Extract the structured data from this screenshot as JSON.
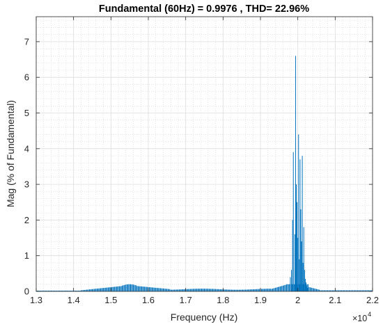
{
  "chart_data": {
    "type": "bar",
    "title": "Fundamental (60Hz) = 0.9976 , THD= 22.96%",
    "xlabel": "Frequency (Hz)",
    "ylabel": "Mag (% of Fundamental)",
    "x_exponent_label": "×10",
    "x_exponent_power": "4",
    "xlim": [
      13000,
      22000
    ],
    "ylim": [
      0,
      7.7
    ],
    "x_ticks": [
      13000,
      14000,
      15000,
      16000,
      17000,
      18000,
      19000,
      20000,
      21000,
      22000
    ],
    "x_tick_labels": [
      "1.3",
      "1.4",
      "1.5",
      "1.6",
      "1.7",
      "1.8",
      "1.9",
      "2",
      "2.1",
      "2.2"
    ],
    "y_ticks": [
      0,
      1,
      2,
      3,
      4,
      5,
      6,
      7
    ],
    "y_tick_labels": [
      "0",
      "1",
      "2",
      "3",
      "4",
      "5",
      "6",
      "7"
    ],
    "grid": true,
    "minor_grid": true,
    "bar_color": "#0072BD",
    "series": [
      {
        "x": [
          19800,
          19830,
          19860,
          19880,
          19920,
          19940,
          19960,
          19980,
          20000,
          20020,
          20040,
          20060,
          20080,
          20100,
          20120,
          20140,
          20160,
          20180,
          20200,
          20220,
          20240,
          20260
        ],
        "values": [
          0.4,
          0.6,
          2.0,
          3.9,
          1.6,
          6.6,
          3.0,
          2.5,
          1.5,
          4.4,
          0.9,
          3.7,
          2.3,
          1.4,
          3.8,
          0.8,
          1.8,
          0.6,
          0.35,
          0.25,
          0.15,
          0.1
        ]
      }
    ]
  }
}
